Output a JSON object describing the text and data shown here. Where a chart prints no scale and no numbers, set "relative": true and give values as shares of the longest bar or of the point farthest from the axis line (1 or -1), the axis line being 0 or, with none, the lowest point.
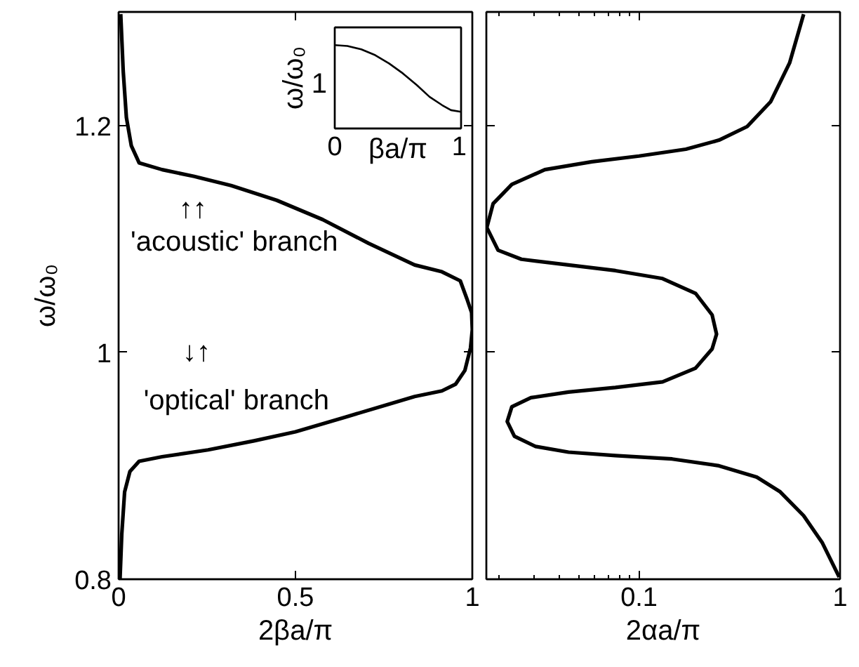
{
  "chart_data": [
    {
      "type": "line",
      "xlabel": "2βa/π",
      "ylabel": "ω/ω₀",
      "xlim": [
        0,
        1
      ],
      "ylim": [
        0.8,
        1.3
      ],
      "xticks": [
        0,
        0.5,
        1
      ],
      "yticks": [
        0.8,
        1,
        1.2
      ],
      "series": [
        {
          "color": "#000000",
          "x": [
            0.004,
            0.009,
            0.017,
            0.032,
            0.058,
            0.123,
            0.253,
            0.383,
            0.5,
            0.642,
            0.772,
            0.837,
            0.914,
            0.953,
            0.979,
            0.995,
            1.0,
            0.998,
            0.986,
            0.966,
            0.914,
            0.837,
            0.707,
            0.577,
            0.447,
            0.318,
            0.214,
            0.123,
            0.058,
            0.036,
            0.022,
            0.013,
            0.006
          ],
          "values": [
            0.8,
            0.84,
            0.877,
            0.895,
            0.904,
            0.908,
            0.914,
            0.922,
            0.93,
            0.943,
            0.955,
            0.961,
            0.966,
            0.972,
            0.984,
            1.004,
            1.02,
            1.035,
            1.046,
            1.063,
            1.071,
            1.077,
            1.096,
            1.117,
            1.134,
            1.147,
            1.155,
            1.161,
            1.167,
            1.182,
            1.207,
            1.248,
            1.298
          ]
        }
      ],
      "annotations": [
        "↑↑",
        "'acoustic' branch",
        "↓↑",
        "'optical' branch"
      ]
    },
    {
      "type": "line",
      "xlabel": "βa/π",
      "ylabel": "ω/ω₀",
      "relative": true,
      "xlim": [
        0,
        1
      ],
      "xticks": [
        0,
        1
      ],
      "series": [
        {
          "color": "#000000",
          "x": [
            0,
            0.1,
            0.21,
            0.32,
            0.43,
            0.54,
            0.65,
            0.75,
            0.85,
            0.92,
            1
          ],
          "values": [
            1,
            0.99,
            0.95,
            0.88,
            0.78,
            0.66,
            0.52,
            0.38,
            0.28,
            0.22,
            0.2
          ]
        }
      ],
      "annotations": [
        "1"
      ]
    },
    {
      "type": "line",
      "xlabel": "2αa/π",
      "log": "x",
      "xlim": [
        0.0174,
        1
      ],
      "ylim": [
        0.8,
        1.3
      ],
      "xticks": [
        {
          "value": 0.02,
          "label": null
        },
        {
          "value": 0.03,
          "label": null
        },
        {
          "value": 0.04,
          "label": null
        },
        {
          "value": 0.05,
          "label": null
        },
        {
          "value": 0.06,
          "label": null
        },
        {
          "value": 0.07,
          "label": null
        },
        {
          "value": 0.08,
          "label": null
        },
        {
          "value": 0.09,
          "label": null
        },
        0.1,
        1
      ],
      "yticks": [
        0.8,
        1,
        1.2
      ],
      "tick_labels": "x",
      "series": [
        {
          "color": "#000000",
          "x": [
            0.99,
            0.817,
            0.659,
            0.504,
            0.385,
            0.25,
            0.146,
            0.0763,
            0.0446,
            0.0306,
            0.024,
            0.0221,
            0.0233,
            0.029,
            0.0446,
            0.0763,
            0.131,
            0.191,
            0.231,
            0.243,
            0.231,
            0.191,
            0.131,
            0.0763,
            0.0446,
            0.026,
            0.0199,
            0.0175,
            0.0188,
            0.0233,
            0.034,
            0.0583,
            0.1,
            0.171,
            0.25,
            0.345,
            0.452,
            0.561,
            0.659
          ],
          "values": [
            0.802,
            0.832,
            0.856,
            0.877,
            0.89,
            0.9,
            0.906,
            0.909,
            0.912,
            0.917,
            0.926,
            0.939,
            0.952,
            0.96,
            0.965,
            0.969,
            0.974,
            0.986,
            1.003,
            1.016,
            1.033,
            1.052,
            1.065,
            1.072,
            1.077,
            1.082,
            1.09,
            1.11,
            1.131,
            1.148,
            1.161,
            1.168,
            1.173,
            1.179,
            1.187,
            1.199,
            1.221,
            1.255,
            1.298
          ]
        }
      ]
    }
  ]
}
